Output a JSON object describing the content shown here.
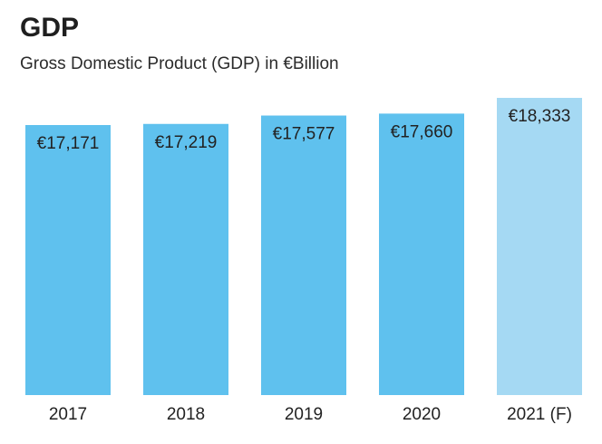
{
  "header": {
    "title": "GDP",
    "subtitle": "Gross Domestic Product (GDP) in €Billion"
  },
  "colors": {
    "actual": "#5fc1ee",
    "forecast": "#a5d9f3",
    "text": "#222222"
  },
  "chart_data": {
    "type": "bar",
    "title": "GDP",
    "subtitle": "Gross Domestic Product (GDP) in €Billion",
    "categories": [
      "2017",
      "2018",
      "2019",
      "2020",
      "2021 (F)"
    ],
    "values": [
      17171,
      17219,
      17577,
      17660,
      18333
    ],
    "value_labels": [
      "€17,171",
      "€17,219",
      "€17,577",
      "€17,660",
      "€18,333"
    ],
    "forecast": [
      false,
      false,
      false,
      false,
      true
    ],
    "xlabel": "",
    "ylabel": "",
    "ylim": [
      0,
      18500
    ],
    "grid": false,
    "legend": "none"
  }
}
